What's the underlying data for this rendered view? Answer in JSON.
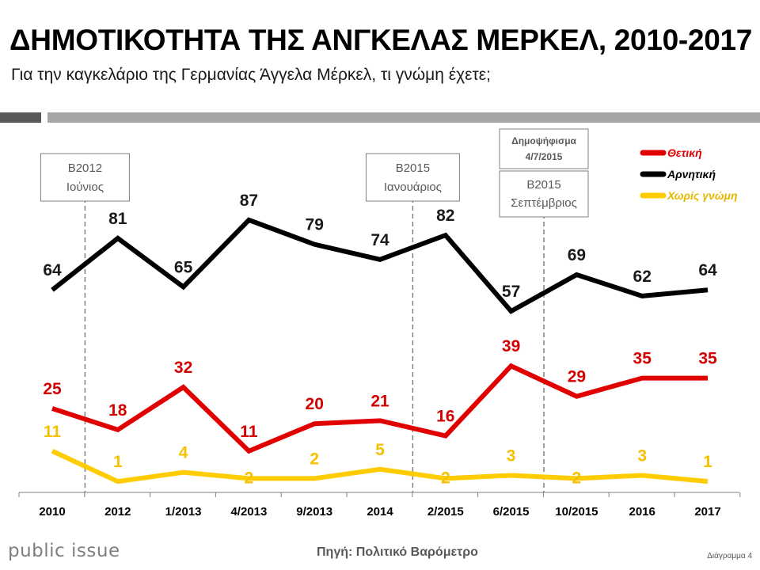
{
  "header": {
    "title": "ΔΗΜΟΤΙΚΟΤΗΤΑ ΤΗΣ ΑΝΓΚΕΛΑΣ ΜΕΡΚΕΛ, 2010-2017",
    "subtitle": "Για την καγκελάριο της Γερμανίας Άγγελα Μέρκελ, τι γνώμη έχετε;"
  },
  "footer": {
    "brand": "public issue",
    "source": "Πηγή: Πολιτικό Βαρόμετρο",
    "diagram": "Διάγραμμα 4"
  },
  "chart_data": {
    "type": "line",
    "categories": [
      "2010",
      "2012",
      "1/2013",
      "4/2013",
      "9/2013",
      "2014",
      "2/2015",
      "6/2015",
      "10/2015",
      "2016",
      "2017"
    ],
    "ylim": [
      0,
      100
    ],
    "grid": false,
    "legend_position": "top-right",
    "series": [
      {
        "name": "Θετική",
        "color": "#e00000",
        "label_color": "#d40000",
        "values": [
          25,
          18,
          32,
          11,
          20,
          21,
          16,
          39,
          29,
          35,
          35
        ]
      },
      {
        "name": "Αρνητική",
        "color": "#000000",
        "label_color": "#1a1a1a",
        "values": [
          64,
          81,
          65,
          87,
          79,
          74,
          82,
          57,
          69,
          62,
          64
        ]
      },
      {
        "name": "Χωρίς γνώμη",
        "color": "#ffcc00",
        "label_color": "#f5c000",
        "values": [
          11,
          1,
          4,
          2,
          2,
          5,
          2,
          3,
          2,
          3,
          1
        ]
      }
    ],
    "annotations": [
      {
        "lines": [
          "Β2012",
          "Ιούνιος"
        ],
        "after_category": "2010"
      },
      {
        "lines": [
          "Β2015",
          "Ιανουάριος"
        ],
        "after_category": "2014"
      },
      {
        "lines": [
          "Δημοψήφισμα",
          "4/7/2015"
        ],
        "after_category": "6/2015"
      },
      {
        "lines": [
          "Β2015",
          "Σεπτέμβριος"
        ],
        "after_category": "6/2015"
      }
    ]
  }
}
